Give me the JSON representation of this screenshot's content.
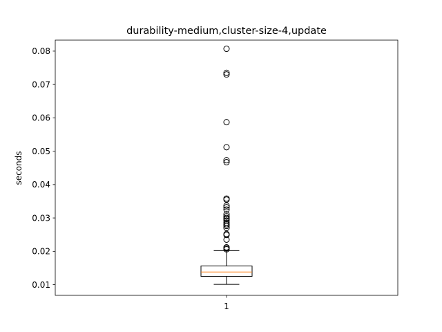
{
  "chart_data": {
    "type": "box",
    "title": "durability-medium,cluster-size-4,update",
    "xlabel": "",
    "ylabel": "seconds",
    "categories": [
      "1"
    ],
    "ylim": [
      0.0068,
      0.0833
    ],
    "yticks": [
      0.01,
      0.02,
      0.03,
      0.04,
      0.05,
      0.06,
      0.07,
      0.08
    ],
    "ytick_labels": [
      "0.01",
      "0.02",
      "0.03",
      "0.04",
      "0.05",
      "0.06",
      "0.07",
      "0.08"
    ],
    "grid": false,
    "box": {
      "whisker_low": 0.0101,
      "q1": 0.0125,
      "median": 0.0138,
      "q3": 0.0156,
      "whisker_high": 0.0202
    },
    "outliers": [
      0.0807,
      0.0735,
      0.073,
      0.0587,
      0.0512,
      0.0473,
      0.0467,
      0.0358,
      0.0355,
      0.0337,
      0.0332,
      0.0325,
      0.0311,
      0.0305,
      0.03,
      0.0296,
      0.0292,
      0.0286,
      0.0281,
      0.0276,
      0.027,
      0.0252,
      0.0249,
      0.0235,
      0.0212,
      0.0209,
      0.0206
    ],
    "colors": {
      "box": "#000000",
      "median": "#ff7f0e",
      "outlier": "#000000"
    }
  }
}
